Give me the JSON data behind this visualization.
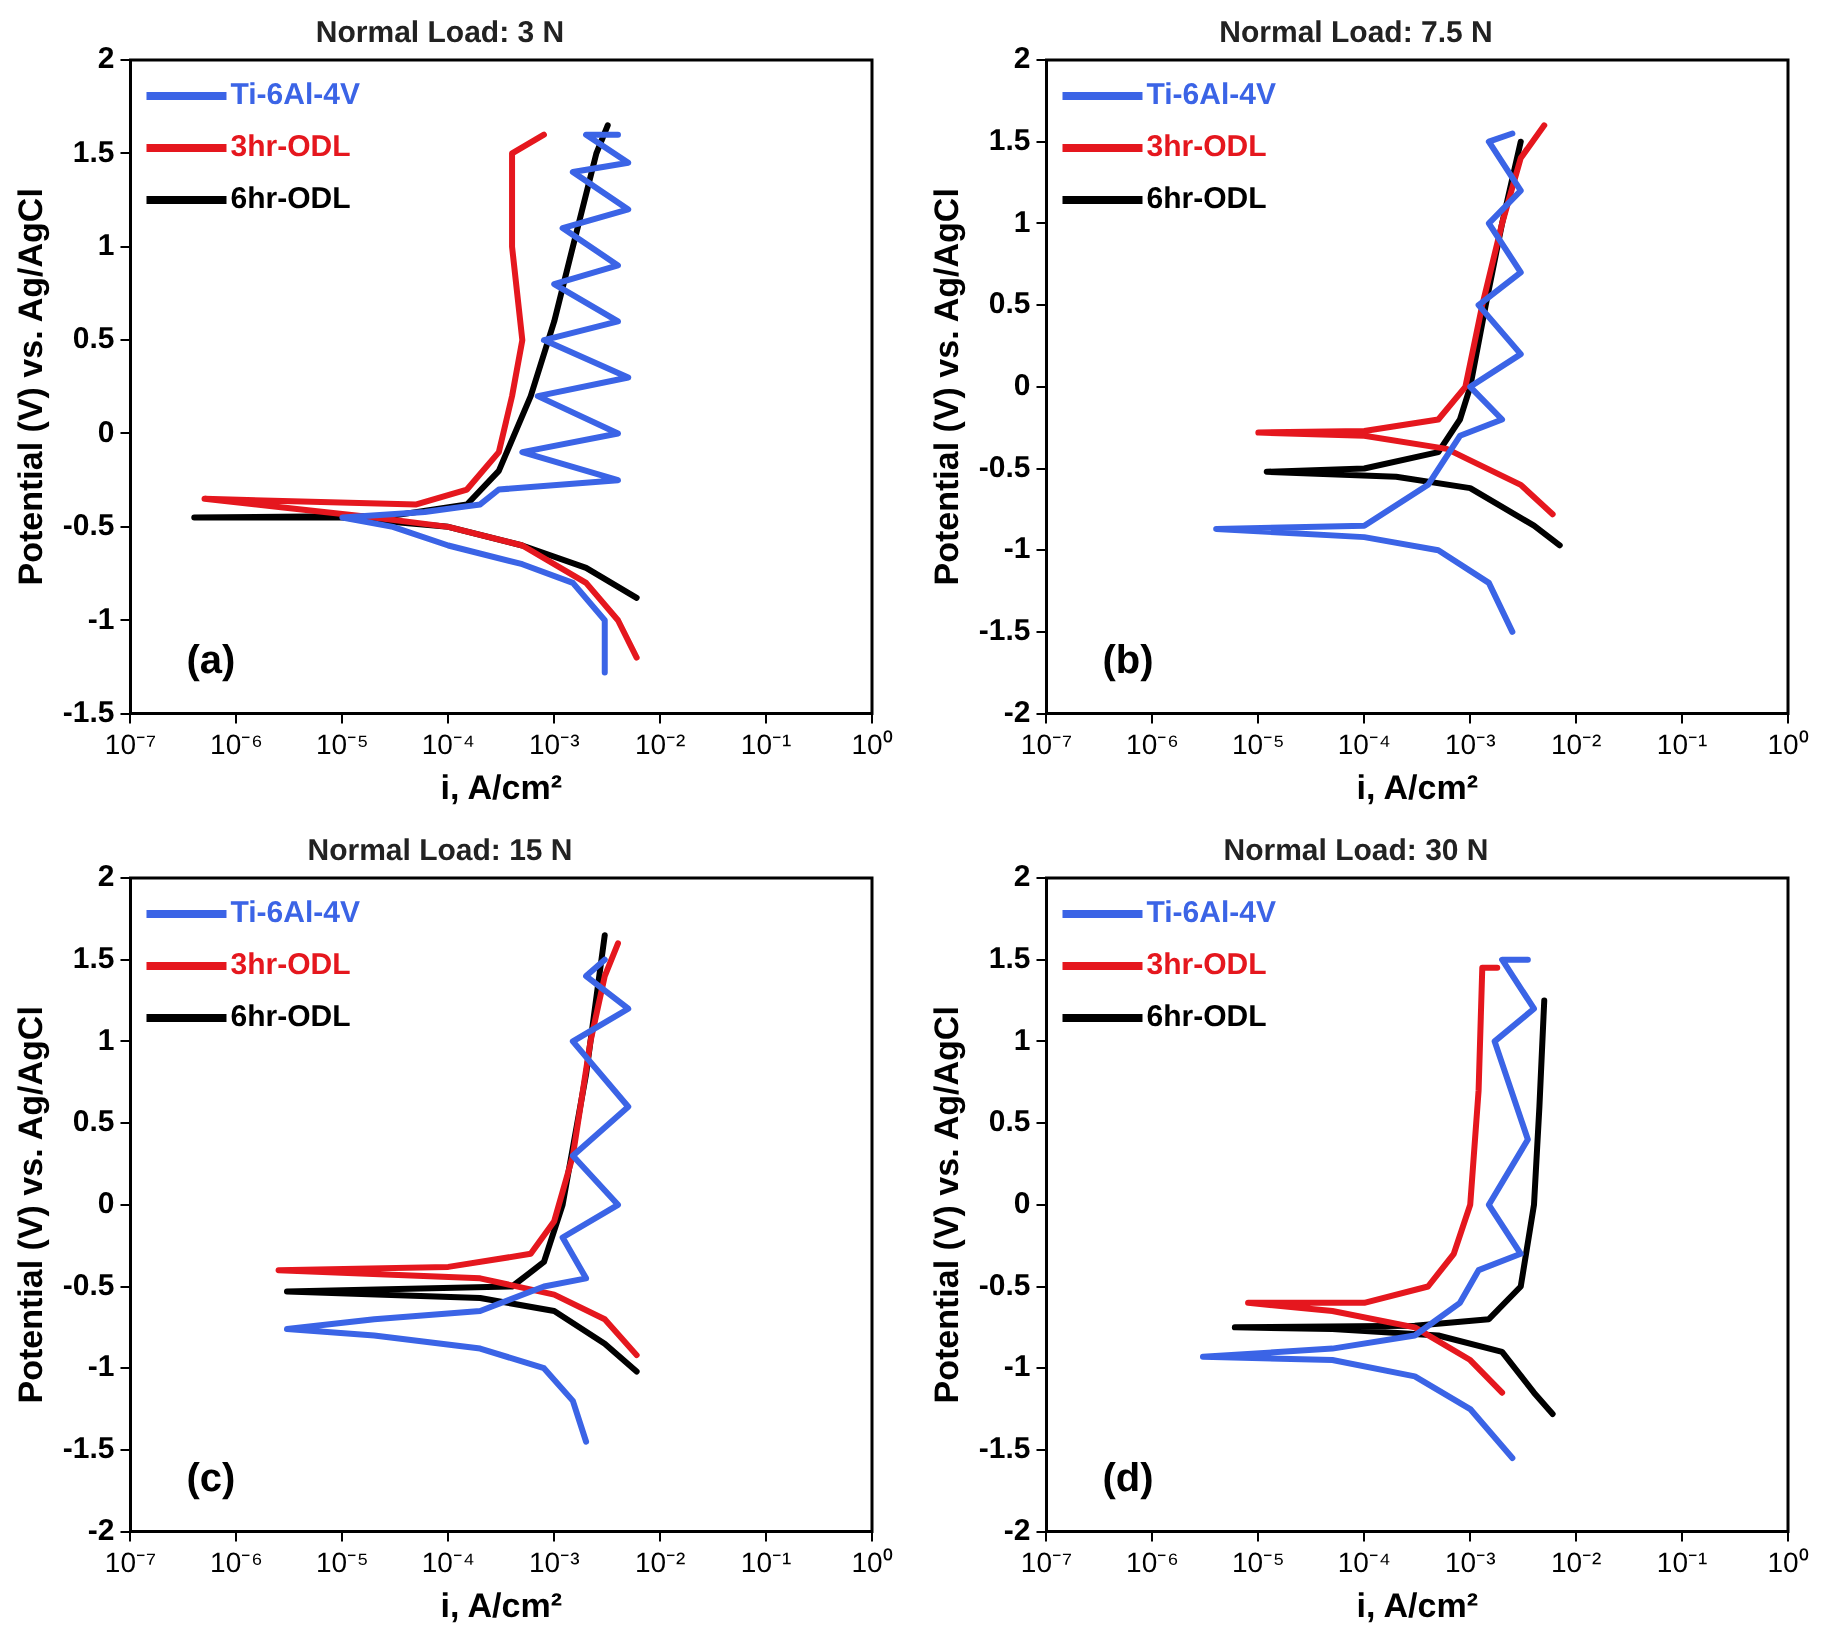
{
  "chart_data": [
    {
      "type": "line",
      "title": "Normal Load: 3 N",
      "xlabel": "i, A/cm²",
      "ylabel": "Potential (V) vs. Ag/AgCl",
      "log": "x",
      "legend": "top left",
      "marker": "none",
      "line_style": "solid",
      "grid": false,
      "annotations": [
        "(a)"
      ],
      "xlim": [
        1e-07,
        1
      ],
      "xticks": [
        {
          "value": 1e-07,
          "label": "10⁻⁷"
        },
        {
          "value": 1e-06,
          "label": "10⁻⁶"
        },
        {
          "value": 1e-05,
          "label": "10⁻⁵"
        },
        {
          "value": 0.0001,
          "label": "10⁻⁴"
        },
        {
          "value": 0.001,
          "label": "10⁻³"
        },
        {
          "value": 0.01,
          "label": "10⁻²"
        },
        {
          "value": 0.1,
          "label": "10⁻¹"
        },
        {
          "value": 1,
          "label": "10⁰"
        }
      ],
      "ylim": [
        -1.5,
        2
      ],
      "yticks": [
        -1.5,
        -1,
        -0.5,
        0,
        0.5,
        1,
        1.5,
        2
      ],
      "series": [
        {
          "name": "Ti-6Al-4V",
          "color": "#3b64e6",
          "x": [
            0.003,
            0.003,
            0.0015,
            0.0005,
            0.0001,
            3e-05,
            1e-05,
            6e-05,
            0.0002,
            0.0003,
            0.004,
            0.0005,
            0.004,
            0.0007,
            0.005,
            0.0008,
            0.004,
            0.001,
            0.004,
            0.0012,
            0.005,
            0.0015,
            0.005,
            0.002,
            0.004
          ],
          "values": [
            -1.28,
            -1.0,
            -0.8,
            -0.7,
            -0.6,
            -0.5,
            -0.45,
            -0.42,
            -0.38,
            -0.3,
            -0.25,
            -0.1,
            0,
            0.2,
            0.3,
            0.5,
            0.6,
            0.8,
            0.9,
            1.1,
            1.2,
            1.4,
            1.45,
            1.6,
            1.6
          ]
        },
        {
          "name": "3hr-ODL",
          "color": "#e5171e",
          "x": [
            0.006,
            0.004,
            0.002,
            0.0005,
            0.0001,
            2e-05,
            5e-07,
            5e-05,
            0.00015,
            0.0003,
            0.0004,
            0.0005,
            0.0004,
            0.0004,
            0.0008
          ],
          "values": [
            -1.2,
            -1.0,
            -0.8,
            -0.6,
            -0.5,
            -0.45,
            -0.35,
            -0.38,
            -0.3,
            -0.1,
            0.2,
            0.5,
            1.0,
            1.5,
            1.6
          ]
        },
        {
          "name": "6hr-ODL",
          "color": "#000000",
          "x": [
            0.006,
            0.002,
            0.0005,
            0.0001,
            1e-05,
            4e-07,
            3e-05,
            0.00015,
            0.0003,
            0.0006,
            0.001,
            0.0015,
            0.0025,
            0.0032
          ],
          "values": [
            -0.88,
            -0.72,
            -0.6,
            -0.5,
            -0.45,
            -0.45,
            -0.44,
            -0.38,
            -0.2,
            0.2,
            0.6,
            1.0,
            1.5,
            1.65
          ]
        }
      ]
    },
    {
      "type": "line",
      "title": "Normal Load: 7.5 N",
      "xlabel": "i, A/cm²",
      "ylabel": "Potential (V) vs. Ag/AgCl",
      "log": "x",
      "legend": "top left",
      "marker": "none",
      "line_style": "solid",
      "grid": false,
      "annotations": [
        "(b)"
      ],
      "xlim": [
        1e-07,
        1
      ],
      "xticks": [
        {
          "value": 1e-07,
          "label": "10⁻⁷"
        },
        {
          "value": 1e-06,
          "label": "10⁻⁶"
        },
        {
          "value": 1e-05,
          "label": "10⁻⁵"
        },
        {
          "value": 0.0001,
          "label": "10⁻⁴"
        },
        {
          "value": 0.001,
          "label": "10⁻³"
        },
        {
          "value": 0.01,
          "label": "10⁻²"
        },
        {
          "value": 0.1,
          "label": "10⁻¹"
        },
        {
          "value": 1,
          "label": "10⁰"
        }
      ],
      "ylim": [
        -2,
        2
      ],
      "yticks": [
        -2,
        -1.5,
        -1,
        -0.5,
        0,
        0.5,
        1,
        1.5,
        2
      ],
      "series": [
        {
          "name": "Ti-6Al-4V",
          "color": "#3b64e6",
          "x": [
            0.0025,
            0.0015,
            0.0005,
            0.0001,
            4e-06,
            0.0001,
            0.0004,
            0.0008,
            0.002,
            0.001,
            0.003,
            0.0012,
            0.003,
            0.0015,
            0.003,
            0.0015,
            0.0025
          ],
          "values": [
            -1.5,
            -1.2,
            -1.0,
            -0.92,
            -0.87,
            -0.85,
            -0.6,
            -0.3,
            -0.2,
            0,
            0.2,
            0.5,
            0.7,
            1.0,
            1.2,
            1.5,
            1.55
          ]
        },
        {
          "name": "3hr-ODL",
          "color": "#e5171e",
          "x": [
            0.006,
            0.003,
            0.001,
            0.0006,
            0.0001,
            1e-05,
            0.0001,
            0.0005,
            0.0009,
            0.0013,
            0.002,
            0.003,
            0.005
          ],
          "values": [
            -0.78,
            -0.6,
            -0.45,
            -0.38,
            -0.3,
            -0.28,
            -0.27,
            -0.2,
            0,
            0.5,
            1.0,
            1.4,
            1.6
          ]
        },
        {
          "name": "6hr-ODL",
          "color": "#000000",
          "x": [
            0.007,
            0.004,
            0.001,
            0.0002,
            1.2e-05,
            0.0001,
            0.0005,
            0.0008,
            0.001,
            0.0014,
            0.002,
            0.003
          ],
          "values": [
            -0.97,
            -0.85,
            -0.62,
            -0.55,
            -0.52,
            -0.5,
            -0.4,
            -0.2,
            0,
            0.5,
            1.0,
            1.5
          ]
        }
      ]
    },
    {
      "type": "line",
      "title": "Normal Load: 15 N",
      "xlabel": "i, A/cm²",
      "ylabel": "Potential (V) vs. Ag/AgCl",
      "log": "x",
      "legend": "top left",
      "marker": "none",
      "line_style": "solid",
      "grid": false,
      "annotations": [
        "(c)"
      ],
      "xlim": [
        1e-07,
        1
      ],
      "xticks": [
        {
          "value": 1e-07,
          "label": "10⁻⁷"
        },
        {
          "value": 1e-06,
          "label": "10⁻⁶"
        },
        {
          "value": 1e-05,
          "label": "10⁻⁵"
        },
        {
          "value": 0.0001,
          "label": "10⁻⁴"
        },
        {
          "value": 0.001,
          "label": "10⁻³"
        },
        {
          "value": 0.01,
          "label": "10⁻²"
        },
        {
          "value": 0.1,
          "label": "10⁻¹"
        },
        {
          "value": 1,
          "label": "10⁰"
        }
      ],
      "ylim": [
        -2,
        2
      ],
      "yticks": [
        -2,
        -1.5,
        -1,
        -0.5,
        0,
        0.5,
        1,
        1.5,
        2
      ],
      "series": [
        {
          "name": "Ti-6Al-4V",
          "color": "#3b64e6",
          "x": [
            0.002,
            0.0015,
            0.0008,
            0.0002,
            2e-05,
            3e-06,
            2e-05,
            0.0002,
            0.0008,
            0.002,
            0.0012,
            0.004,
            0.0015,
            0.005,
            0.0015,
            0.005,
            0.002,
            0.003
          ],
          "values": [
            -1.45,
            -1.2,
            -1.0,
            -0.88,
            -0.8,
            -0.76,
            -0.7,
            -0.65,
            -0.5,
            -0.45,
            -0.2,
            0,
            0.3,
            0.6,
            1.0,
            1.2,
            1.4,
            1.5
          ]
        },
        {
          "name": "3hr-ODL",
          "color": "#e5171e",
          "x": [
            0.006,
            0.003,
            0.001,
            0.0002,
            2.5e-06,
            0.0001,
            0.0006,
            0.001,
            0.0015,
            0.0022,
            0.003,
            0.004
          ],
          "values": [
            -0.92,
            -0.7,
            -0.55,
            -0.45,
            -0.4,
            -0.38,
            -0.3,
            -0.1,
            0.3,
            1.0,
            1.4,
            1.6
          ]
        },
        {
          "name": "6hr-ODL",
          "color": "#000000",
          "x": [
            0.006,
            0.003,
            0.001,
            0.0002,
            3e-06,
            0.0004,
            0.0008,
            0.0012,
            0.002,
            0.003
          ],
          "values": [
            -1.02,
            -0.85,
            -0.65,
            -0.57,
            -0.53,
            -0.5,
            -0.35,
            0,
            0.8,
            1.65
          ]
        }
      ]
    },
    {
      "type": "line",
      "title": "Normal Load: 30 N",
      "xlabel": "i, A/cm²",
      "ylabel": "Potential (V) vs. Ag/AgCl",
      "log": "x",
      "legend": "top left",
      "marker": "none",
      "line_style": "solid",
      "grid": false,
      "annotations": [
        "(d)"
      ],
      "xlim": [
        1e-07,
        1
      ],
      "xticks": [
        {
          "value": 1e-07,
          "label": "10⁻⁷"
        },
        {
          "value": 1e-06,
          "label": "10⁻⁶"
        },
        {
          "value": 1e-05,
          "label": "10⁻⁵"
        },
        {
          "value": 0.0001,
          "label": "10⁻⁴"
        },
        {
          "value": 0.001,
          "label": "10⁻³"
        },
        {
          "value": 0.01,
          "label": "10⁻²"
        },
        {
          "value": 0.1,
          "label": "10⁻¹"
        },
        {
          "value": 1,
          "label": "10⁰"
        }
      ],
      "ylim": [
        -2,
        2
      ],
      "yticks": [
        -2,
        -1.5,
        -1,
        -0.5,
        0,
        0.5,
        1,
        1.5,
        2
      ],
      "series": [
        {
          "name": "Ti-6Al-4V",
          "color": "#3b64e6",
          "x": [
            0.0025,
            0.001,
            0.0003,
            5e-05,
            3e-06,
            5e-05,
            0.0003,
            0.0008,
            0.0012,
            0.003,
            0.0015,
            0.0035,
            0.0017,
            0.004,
            0.002,
            0.0035
          ],
          "values": [
            -1.55,
            -1.25,
            -1.05,
            -0.95,
            -0.93,
            -0.88,
            -0.8,
            -0.6,
            -0.4,
            -0.3,
            0,
            0.4,
            1.0,
            1.2,
            1.5,
            1.5
          ]
        },
        {
          "name": "3hr-ODL",
          "color": "#e5171e",
          "x": [
            0.002,
            0.001,
            0.0003,
            5e-05,
            8e-06,
            0.0001,
            0.0004,
            0.0007,
            0.001,
            0.0012,
            0.0013,
            0.0018
          ],
          "values": [
            -1.15,
            -0.95,
            -0.75,
            -0.65,
            -0.6,
            -0.6,
            -0.5,
            -0.3,
            0,
            0.7,
            1.45,
            1.45
          ]
        },
        {
          "name": "6hr-ODL",
          "color": "#000000",
          "x": [
            0.006,
            0.004,
            0.002,
            0.0005,
            5e-05,
            6e-06,
            0.0003,
            0.0015,
            0.003,
            0.004,
            0.0045,
            0.005
          ],
          "values": [
            -1.28,
            -1.15,
            -0.9,
            -0.8,
            -0.76,
            -0.75,
            -0.74,
            -0.7,
            -0.5,
            0,
            0.6,
            1.25
          ]
        }
      ]
    }
  ]
}
